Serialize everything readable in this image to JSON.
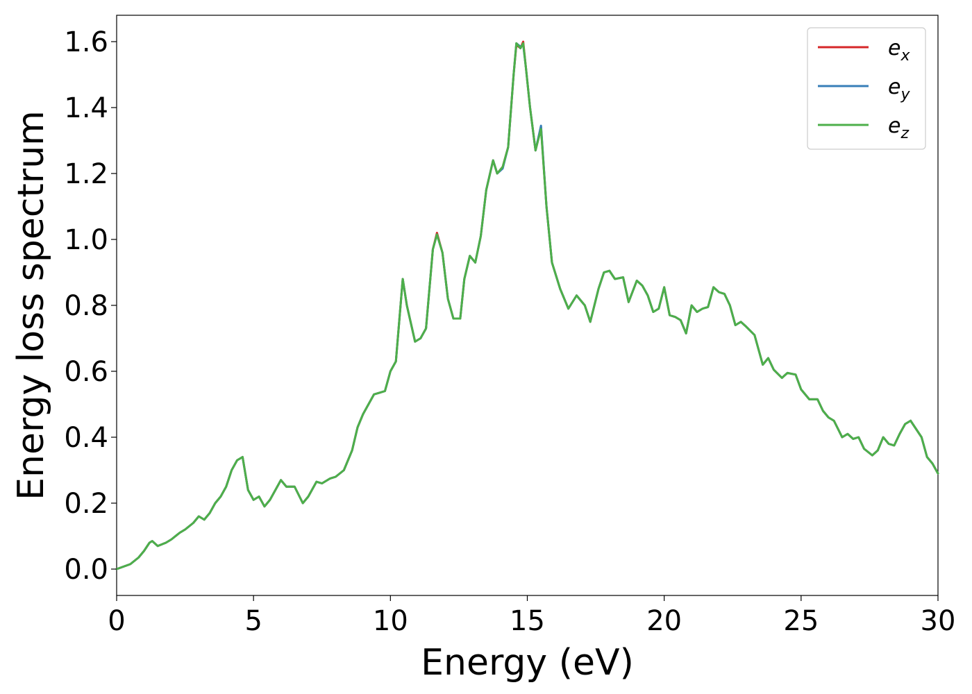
{
  "chart_data": {
    "type": "line",
    "xlabel": "Energy (eV)",
    "ylabel": "Energy loss spectrum",
    "xlim": [
      0,
      30
    ],
    "ylim": [
      -0.08,
      1.68
    ],
    "x_ticks": [
      0,
      5,
      10,
      15,
      20,
      25,
      30
    ],
    "y_ticks": [
      0.0,
      0.2,
      0.4,
      0.6,
      0.8,
      1.0,
      1.2,
      1.4,
      1.6
    ],
    "x_tick_labels": [
      "0",
      "5",
      "10",
      "15",
      "20",
      "25",
      "30"
    ],
    "y_tick_labels": [
      "0.0",
      "0.2",
      "0.4",
      "0.6",
      "0.8",
      "1.0",
      "1.2",
      "1.4",
      "1.6"
    ],
    "grid": false,
    "legend_position": "top-right",
    "x": [
      0,
      0.5,
      0.8,
      1.0,
      1.2,
      1.3,
      1.5,
      1.8,
      2.0,
      2.3,
      2.5,
      2.8,
      3.0,
      3.2,
      3.4,
      3.6,
      3.8,
      4.0,
      4.2,
      4.4,
      4.6,
      4.8,
      5.0,
      5.2,
      5.4,
      5.6,
      5.8,
      6.0,
      6.2,
      6.5,
      6.8,
      7.0,
      7.3,
      7.5,
      7.8,
      8.0,
      8.3,
      8.6,
      8.8,
      9.0,
      9.2,
      9.4,
      9.6,
      9.8,
      10.0,
      10.2,
      10.45,
      10.6,
      10.9,
      11.1,
      11.3,
      11.55,
      11.7,
      11.9,
      12.1,
      12.3,
      12.55,
      12.7,
      12.9,
      13.1,
      13.3,
      13.5,
      13.75,
      13.9,
      14.1,
      14.3,
      14.5,
      14.6,
      14.75,
      14.85,
      14.95,
      15.1,
      15.3,
      15.5,
      15.7,
      15.9,
      16.2,
      16.5,
      16.8,
      17.1,
      17.3,
      17.6,
      17.8,
      18.0,
      18.2,
      18.5,
      18.7,
      19.0,
      19.2,
      19.4,
      19.6,
      19.8,
      20.0,
      20.2,
      20.4,
      20.6,
      20.8,
      21.0,
      21.2,
      21.4,
      21.6,
      21.8,
      22.0,
      22.2,
      22.4,
      22.6,
      22.8,
      23.0,
      23.3,
      23.6,
      23.8,
      24.0,
      24.3,
      24.5,
      24.8,
      25.0,
      25.3,
      25.6,
      25.8,
      26.0,
      26.2,
      26.5,
      26.7,
      26.9,
      27.1,
      27.3,
      27.6,
      27.8,
      28.0,
      28.2,
      28.4,
      28.6,
      28.8,
      29.0,
      29.2,
      29.4,
      29.6,
      29.8,
      30.0
    ],
    "series": [
      {
        "name": "e_x",
        "color": "#d62728",
        "values": [
          0.0,
          0.015,
          0.035,
          0.055,
          0.08,
          0.085,
          0.07,
          0.08,
          0.09,
          0.11,
          0.12,
          0.14,
          0.16,
          0.15,
          0.17,
          0.2,
          0.22,
          0.25,
          0.3,
          0.33,
          0.34,
          0.24,
          0.21,
          0.22,
          0.19,
          0.21,
          0.24,
          0.27,
          0.25,
          0.25,
          0.2,
          0.22,
          0.265,
          0.26,
          0.275,
          0.28,
          0.3,
          0.36,
          0.43,
          0.47,
          0.5,
          0.53,
          0.535,
          0.54,
          0.6,
          0.63,
          0.88,
          0.8,
          0.69,
          0.7,
          0.73,
          0.97,
          1.02,
          0.96,
          0.82,
          0.76,
          0.76,
          0.88,
          0.95,
          0.93,
          1.01,
          1.15,
          1.24,
          1.2,
          1.22,
          1.28,
          1.5,
          1.59,
          1.58,
          1.6,
          1.52,
          1.4,
          1.27,
          1.34,
          1.1,
          0.93,
          0.85,
          0.79,
          0.83,
          0.8,
          0.75,
          0.85,
          0.9,
          0.905,
          0.88,
          0.885,
          0.81,
          0.875,
          0.86,
          0.83,
          0.78,
          0.79,
          0.855,
          0.77,
          0.765,
          0.755,
          0.715,
          0.8,
          0.78,
          0.79,
          0.795,
          0.855,
          0.84,
          0.835,
          0.8,
          0.74,
          0.75,
          0.735,
          0.71,
          0.62,
          0.64,
          0.605,
          0.58,
          0.595,
          0.59,
          0.545,
          0.515,
          0.515,
          0.48,
          0.46,
          0.45,
          0.4,
          0.41,
          0.395,
          0.4,
          0.365,
          0.345,
          0.36,
          0.4,
          0.38,
          0.375,
          0.41,
          0.44,
          0.45,
          0.425,
          0.4,
          0.34,
          0.32,
          0.29
        ]
      },
      {
        "name": "e_y",
        "color": "#377eb8",
        "values": [
          0.0,
          0.015,
          0.035,
          0.055,
          0.08,
          0.085,
          0.07,
          0.08,
          0.09,
          0.11,
          0.12,
          0.14,
          0.16,
          0.15,
          0.17,
          0.2,
          0.22,
          0.25,
          0.3,
          0.33,
          0.34,
          0.24,
          0.21,
          0.22,
          0.19,
          0.21,
          0.24,
          0.27,
          0.25,
          0.25,
          0.2,
          0.22,
          0.265,
          0.26,
          0.275,
          0.28,
          0.3,
          0.36,
          0.43,
          0.47,
          0.5,
          0.53,
          0.535,
          0.54,
          0.6,
          0.63,
          0.88,
          0.8,
          0.69,
          0.7,
          0.73,
          0.97,
          1.015,
          0.96,
          0.82,
          0.76,
          0.76,
          0.88,
          0.95,
          0.93,
          1.01,
          1.15,
          1.24,
          1.2,
          1.215,
          1.28,
          1.5,
          1.595,
          1.585,
          1.59,
          1.52,
          1.4,
          1.27,
          1.345,
          1.1,
          0.93,
          0.85,
          0.79,
          0.83,
          0.8,
          0.75,
          0.85,
          0.9,
          0.905,
          0.88,
          0.885,
          0.81,
          0.875,
          0.86,
          0.83,
          0.78,
          0.79,
          0.855,
          0.77,
          0.765,
          0.755,
          0.715,
          0.8,
          0.78,
          0.79,
          0.795,
          0.855,
          0.84,
          0.835,
          0.8,
          0.74,
          0.75,
          0.735,
          0.71,
          0.62,
          0.64,
          0.605,
          0.58,
          0.595,
          0.59,
          0.545,
          0.515,
          0.515,
          0.48,
          0.46,
          0.45,
          0.4,
          0.41,
          0.395,
          0.4,
          0.365,
          0.345,
          0.36,
          0.4,
          0.38,
          0.375,
          0.41,
          0.44,
          0.45,
          0.425,
          0.4,
          0.34,
          0.32,
          0.29
        ]
      },
      {
        "name": "e_z",
        "color": "#4daf4a",
        "values": [
          0.0,
          0.015,
          0.035,
          0.055,
          0.08,
          0.085,
          0.07,
          0.08,
          0.09,
          0.11,
          0.12,
          0.14,
          0.16,
          0.15,
          0.17,
          0.2,
          0.22,
          0.25,
          0.3,
          0.33,
          0.34,
          0.24,
          0.21,
          0.22,
          0.19,
          0.21,
          0.24,
          0.27,
          0.25,
          0.25,
          0.2,
          0.22,
          0.265,
          0.26,
          0.275,
          0.28,
          0.3,
          0.36,
          0.43,
          0.47,
          0.5,
          0.53,
          0.535,
          0.54,
          0.6,
          0.63,
          0.88,
          0.8,
          0.69,
          0.7,
          0.73,
          0.97,
          1.015,
          0.96,
          0.82,
          0.76,
          0.76,
          0.88,
          0.95,
          0.93,
          1.01,
          1.15,
          1.24,
          1.2,
          1.22,
          1.28,
          1.5,
          1.595,
          1.58,
          1.595,
          1.52,
          1.4,
          1.27,
          1.335,
          1.1,
          0.93,
          0.85,
          0.79,
          0.83,
          0.8,
          0.75,
          0.85,
          0.9,
          0.905,
          0.88,
          0.885,
          0.81,
          0.875,
          0.86,
          0.83,
          0.78,
          0.79,
          0.855,
          0.77,
          0.765,
          0.755,
          0.715,
          0.8,
          0.78,
          0.79,
          0.795,
          0.855,
          0.84,
          0.835,
          0.8,
          0.74,
          0.75,
          0.735,
          0.71,
          0.62,
          0.64,
          0.605,
          0.58,
          0.595,
          0.59,
          0.545,
          0.515,
          0.515,
          0.48,
          0.46,
          0.45,
          0.4,
          0.41,
          0.395,
          0.4,
          0.365,
          0.345,
          0.36,
          0.4,
          0.38,
          0.375,
          0.41,
          0.44,
          0.45,
          0.425,
          0.4,
          0.34,
          0.32,
          0.29
        ]
      }
    ],
    "legend": [
      {
        "base": "e",
        "sub": "x"
      },
      {
        "base": "e",
        "sub": "y"
      },
      {
        "base": "e",
        "sub": "z"
      }
    ]
  }
}
